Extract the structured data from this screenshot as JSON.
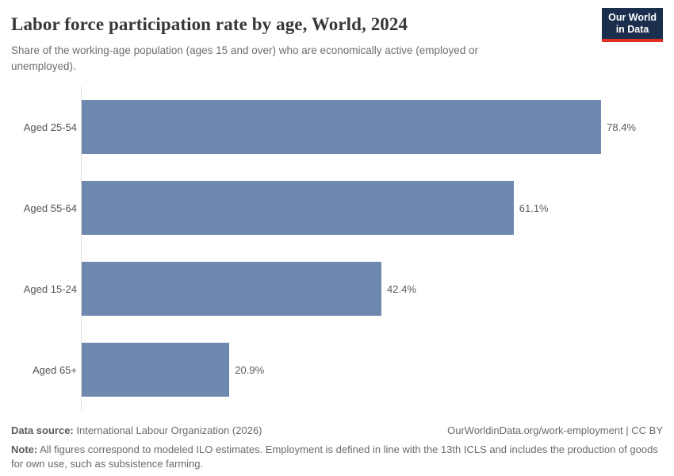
{
  "header": {
    "title": "Labor force participation rate by age, World, 2024",
    "subtitle": "Share of the working-age population (ages 15 and over) who are economically active (employed or unemployed).",
    "logo": {
      "line1": "Our World",
      "line2": "in Data"
    }
  },
  "chart_data": {
    "type": "bar",
    "orientation": "horizontal",
    "title": "Labor force participation rate by age, World, 2024",
    "categories": [
      "Aged 25-54",
      "Aged 55-64",
      "Aged 15-24",
      "Aged 65+"
    ],
    "values": [
      78.4,
      61.1,
      42.4,
      20.9
    ],
    "value_labels": [
      "78.4%",
      "61.1%",
      "42.4%",
      "20.9%"
    ],
    "unit": "%",
    "xlabel": "",
    "ylabel": "",
    "xlim": [
      0,
      78.4
    ],
    "grid": false,
    "legend": false,
    "bar_color": "#6e88af",
    "axis_line_color": "#dedede"
  },
  "footer": {
    "source_label": "Data source:",
    "source_text": " International Labour Organization (2026)",
    "attribution": "OurWorldinData.org/work-employment | CC BY",
    "note_label": "Note:",
    "note_text": " All figures correspond to modeled ILO estimates. Employment is defined in line with the 13th ICLS and includes the production of goods for own use, such as subsistence farming."
  }
}
